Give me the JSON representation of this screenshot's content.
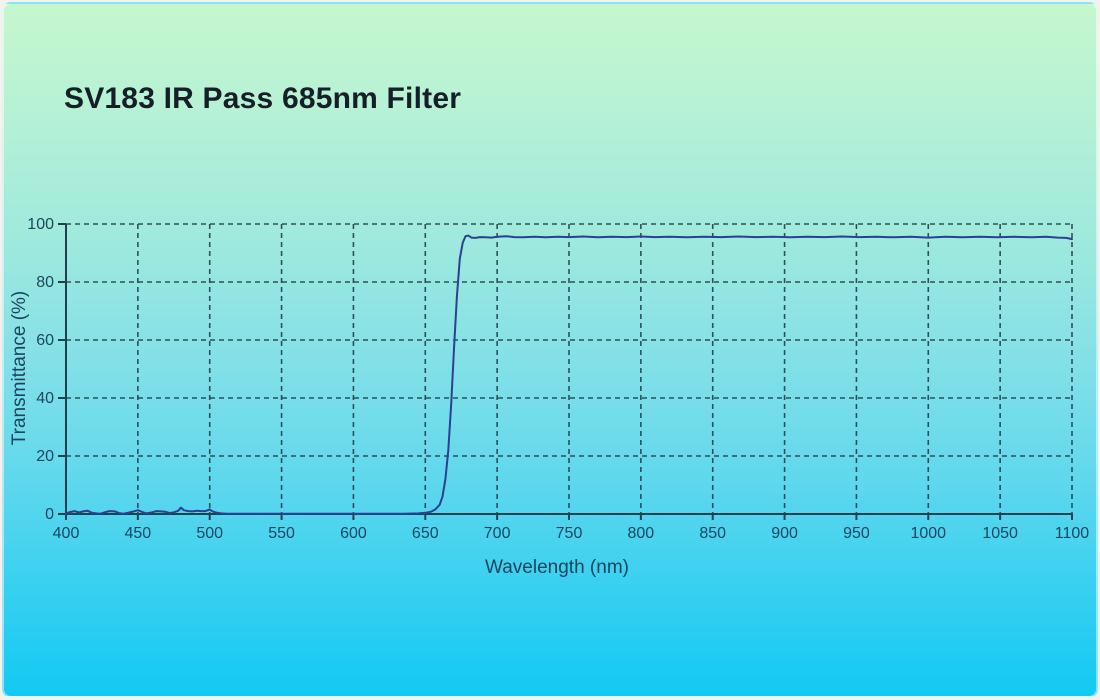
{
  "page": {
    "title": "SV183 IR Pass 685nm Filter"
  },
  "colors": {
    "background_top": "#c5f7ce",
    "background_bottom": "#12c9f3",
    "frame": "#f3f2ee",
    "axis": "#21404f",
    "grid": "#21404f",
    "curve": "#2c4090",
    "title_text": "#151f27",
    "tick_text": "#1c4660"
  },
  "chart_data": {
    "type": "line",
    "title": "SV183 IR Pass 685nm Filter",
    "xlabel": "Wavelength (nm)",
    "ylabel": "Transmittance (%)",
    "xlim": [
      400,
      1100
    ],
    "ylim": [
      0,
      100
    ],
    "x_ticks": [
      400,
      450,
      500,
      550,
      600,
      650,
      700,
      750,
      800,
      850,
      900,
      950,
      1000,
      1050,
      1100
    ],
    "y_ticks": [
      0,
      20,
      40,
      60,
      80,
      100
    ],
    "grid": "dashed",
    "legend": "none",
    "series": [
      {
        "name": "transmittance",
        "points": [
          [
            400,
            0.2
          ],
          [
            403,
            0.7
          ],
          [
            406,
            1.0
          ],
          [
            409,
            0.5
          ],
          [
            412,
            0.9
          ],
          [
            415,
            1.1
          ],
          [
            418,
            0.4
          ],
          [
            421,
            0.2
          ],
          [
            424,
            0.1
          ],
          [
            427,
            0.6
          ],
          [
            430,
            1.0
          ],
          [
            434,
            0.9
          ],
          [
            437,
            0.3
          ],
          [
            440,
            0.1
          ],
          [
            444,
            0.5
          ],
          [
            448,
            1.0
          ],
          [
            450,
            1.3
          ],
          [
            453,
            0.7
          ],
          [
            456,
            0.2
          ],
          [
            460,
            0.6
          ],
          [
            463,
            1.0
          ],
          [
            466,
            0.9
          ],
          [
            469,
            0.8
          ],
          [
            472,
            0.3
          ],
          [
            475,
            0.6
          ],
          [
            478,
            1.1
          ],
          [
            480,
            2.2
          ],
          [
            482,
            1.3
          ],
          [
            485,
            1.0
          ],
          [
            488,
            0.9
          ],
          [
            491,
            1.1
          ],
          [
            494,
            1.0
          ],
          [
            497,
            1.0
          ],
          [
            500,
            1.6
          ],
          [
            502,
            0.9
          ],
          [
            505,
            0.4
          ],
          [
            508,
            0.2
          ],
          [
            512,
            0.1
          ],
          [
            520,
            0.1
          ],
          [
            535,
            0.1
          ],
          [
            550,
            0.1
          ],
          [
            565,
            0.1
          ],
          [
            580,
            0.1
          ],
          [
            600,
            0.1
          ],
          [
            620,
            0.1
          ],
          [
            635,
            0.1
          ],
          [
            645,
            0.2
          ],
          [
            650,
            0.4
          ],
          [
            654,
            0.8
          ],
          [
            657,
            1.6
          ],
          [
            660,
            3.2
          ],
          [
            662,
            6
          ],
          [
            664,
            12
          ],
          [
            666,
            22
          ],
          [
            668,
            38
          ],
          [
            670,
            57
          ],
          [
            672,
            75
          ],
          [
            674,
            88
          ],
          [
            676,
            93.5
          ],
          [
            678,
            95.8
          ],
          [
            680,
            96.0
          ],
          [
            682,
            95.3
          ],
          [
            685,
            95.2
          ],
          [
            688,
            95.5
          ],
          [
            692,
            95.4
          ],
          [
            696,
            95.3
          ],
          [
            700,
            95.6
          ],
          [
            706,
            95.8
          ],
          [
            712,
            95.5
          ],
          [
            718,
            95.4
          ],
          [
            726,
            95.6
          ],
          [
            734,
            95.4
          ],
          [
            742,
            95.6
          ],
          [
            750,
            95.5
          ],
          [
            760,
            95.7
          ],
          [
            770,
            95.4
          ],
          [
            780,
            95.6
          ],
          [
            790,
            95.5
          ],
          [
            800,
            95.7
          ],
          [
            810,
            95.5
          ],
          [
            820,
            95.6
          ],
          [
            832,
            95.4
          ],
          [
            844,
            95.6
          ],
          [
            856,
            95.5
          ],
          [
            868,
            95.7
          ],
          [
            880,
            95.5
          ],
          [
            892,
            95.6
          ],
          [
            904,
            95.4
          ],
          [
            916,
            95.6
          ],
          [
            928,
            95.5
          ],
          [
            940,
            95.7
          ],
          [
            952,
            95.5
          ],
          [
            964,
            95.6
          ],
          [
            976,
            95.4
          ],
          [
            988,
            95.6
          ],
          [
            1000,
            95.3
          ],
          [
            1012,
            95.6
          ],
          [
            1024,
            95.4
          ],
          [
            1036,
            95.6
          ],
          [
            1048,
            95.4
          ],
          [
            1060,
            95.6
          ],
          [
            1072,
            95.4
          ],
          [
            1082,
            95.6
          ],
          [
            1090,
            95.3
          ],
          [
            1096,
            95.2
          ],
          [
            1100,
            94.8
          ]
        ]
      }
    ]
  }
}
